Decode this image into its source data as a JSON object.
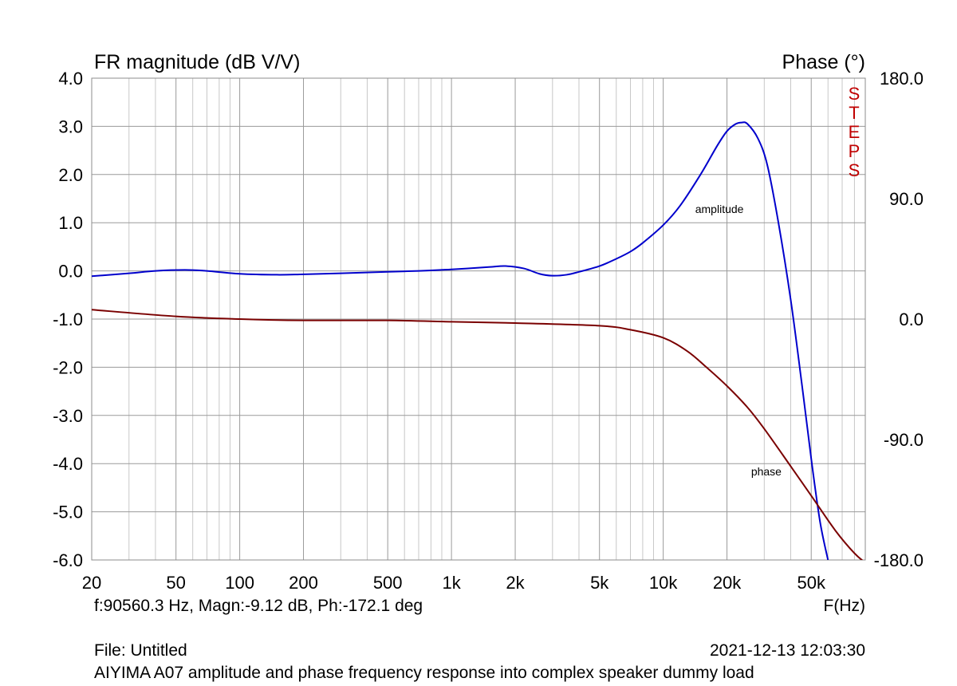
{
  "chart_data": {
    "type": "line",
    "title_left": "FR magnitude (dB V/V)",
    "title_right": "Phase (°)",
    "xlabel": "F(Hz)",
    "x_scale": "log",
    "xlim": [
      20,
      90000
    ],
    "ylim_left": [
      -6.0,
      4.0
    ],
    "ylim_right": [
      -180.0,
      180.0
    ],
    "x_ticks": [
      {
        "value": 20,
        "label": "20"
      },
      {
        "value": 50,
        "label": "50"
      },
      {
        "value": 100,
        "label": "100"
      },
      {
        "value": 200,
        "label": "200"
      },
      {
        "value": 500,
        "label": "500"
      },
      {
        "value": 1000,
        "label": "1k"
      },
      {
        "value": 2000,
        "label": "2k"
      },
      {
        "value": 5000,
        "label": "5k"
      },
      {
        "value": 10000,
        "label": "10k"
      },
      {
        "value": 20000,
        "label": "20k"
      },
      {
        "value": 50000,
        "label": "50k"
      }
    ],
    "y_ticks_left": [
      "4.0",
      "3.0",
      "2.0",
      "1.0",
      "0.0",
      "-1.0",
      "-2.0",
      "-3.0",
      "-4.0",
      "-5.0",
      "-6.0"
    ],
    "y_ticks_right": [
      {
        "value": 180,
        "label": "180.0"
      },
      {
        "value": 90,
        "label": "90.0"
      },
      {
        "value": 0,
        "label": "0.0"
      },
      {
        "value": -90,
        "label": "-90.0"
      },
      {
        "value": -180,
        "label": "-180.0"
      }
    ],
    "grid": true,
    "series": [
      {
        "name": "amplitude",
        "axis": "left",
        "color": "#0000cc",
        "points": [
          [
            20,
            -0.11
          ],
          [
            30,
            -0.05
          ],
          [
            40,
            0.0
          ],
          [
            55,
            0.02
          ],
          [
            70,
            0.0
          ],
          [
            100,
            -0.06
          ],
          [
            150,
            -0.08
          ],
          [
            200,
            -0.07
          ],
          [
            300,
            -0.05
          ],
          [
            500,
            -0.02
          ],
          [
            700,
            0.0
          ],
          [
            1000,
            0.03
          ],
          [
            1500,
            0.08
          ],
          [
            1800,
            0.1
          ],
          [
            2200,
            0.05
          ],
          [
            2600,
            -0.06
          ],
          [
            3000,
            -0.1
          ],
          [
            3500,
            -0.08
          ],
          [
            4000,
            -0.02
          ],
          [
            5000,
            0.1
          ],
          [
            6000,
            0.25
          ],
          [
            7000,
            0.4
          ],
          [
            8000,
            0.58
          ],
          [
            10000,
            0.95
          ],
          [
            12000,
            1.35
          ],
          [
            15000,
            2.0
          ],
          [
            18000,
            2.6
          ],
          [
            20000,
            2.9
          ],
          [
            22000,
            3.05
          ],
          [
            23500,
            3.08
          ],
          [
            25000,
            3.05
          ],
          [
            28000,
            2.75
          ],
          [
            31000,
            2.2
          ],
          [
            35000,
            1.0
          ],
          [
            40000,
            -0.6
          ],
          [
            45000,
            -2.3
          ],
          [
            50000,
            -3.9
          ],
          [
            55000,
            -5.2
          ],
          [
            60000,
            -6.0
          ]
        ]
      },
      {
        "name": "phase",
        "axis": "right",
        "color": "#7a0000",
        "points": [
          [
            20,
            7.0
          ],
          [
            50,
            2.0
          ],
          [
            100,
            0.0
          ],
          [
            200,
            -1.0
          ],
          [
            500,
            -1.0
          ],
          [
            1000,
            -2.0
          ],
          [
            2000,
            -3.0
          ],
          [
            5000,
            -5.0
          ],
          [
            7000,
            -8.0
          ],
          [
            10000,
            -14.0
          ],
          [
            13000,
            -24.0
          ],
          [
            16000,
            -36.0
          ],
          [
            20000,
            -50.0
          ],
          [
            25000,
            -66.0
          ],
          [
            30000,
            -82.0
          ],
          [
            40000,
            -110.0
          ],
          [
            50000,
            -132.0
          ],
          [
            65000,
            -158.0
          ],
          [
            80000,
            -175.0
          ],
          [
            90000,
            -182.0
          ]
        ]
      }
    ],
    "annotations": [
      {
        "text": "amplitude",
        "near_x": 11500
      },
      {
        "text": "phase",
        "near_x": 26000
      }
    ]
  },
  "cursor_readout": "f:90560.3 Hz, Magn:-9.12 dB, Ph:-172.1 deg",
  "footer": {
    "file": "File: Untitled",
    "timestamp": "2021-12-13 12:03:30",
    "caption": "AIYIMA A07 amplitude and phase frequency response into complex speaker dummy load"
  },
  "watermark": {
    "letters": [
      "S",
      "T",
      "E",
      "P",
      "S"
    ],
    "color": "#c00000"
  }
}
